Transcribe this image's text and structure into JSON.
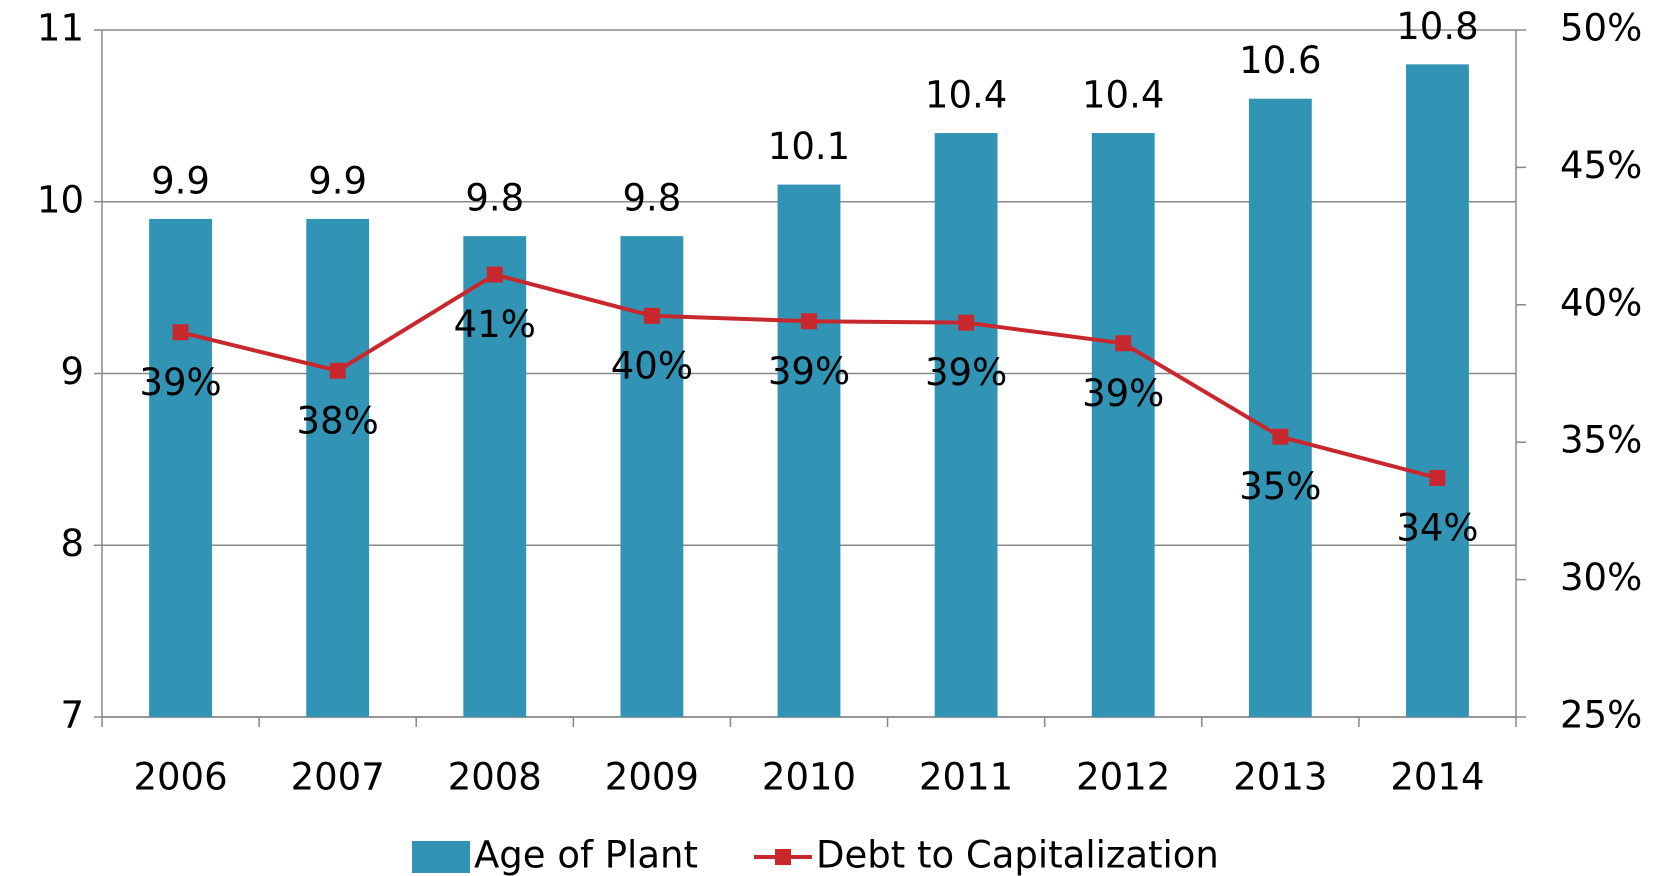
{
  "chart_data": {
    "type": "bar_line",
    "categories": [
      "2006",
      "2007",
      "2008",
      "2009",
      "2010",
      "2011",
      "2012",
      "2013",
      "2014"
    ],
    "series": [
      {
        "name": "Age of Plant",
        "color": "#3294b5",
        "type": "bar",
        "values": [
          9.9,
          9.9,
          9.8,
          9.8,
          10.1,
          10.4,
          10.4,
          10.6,
          10.8
        ]
      },
      {
        "name": "Debt to Capitalization",
        "color": "#c8282d",
        "type": "line",
        "axis": "y2",
        "values": [
          39.0,
          37.6,
          41.1,
          39.6,
          39.4,
          39.35,
          38.6,
          35.2,
          33.7
        ],
        "value_labels": [
          "39%",
          "38%",
          "41%",
          "40%",
          "39%",
          "39%",
          "39%",
          "35%",
          "34%"
        ]
      }
    ],
    "ylim": [
      7,
      11
    ],
    "yticks": [
      7,
      8,
      9,
      10,
      11
    ],
    "y2lim": [
      25,
      50
    ],
    "y2ticks": [
      {
        "value": 25,
        "label": "25%"
      },
      {
        "value": 30,
        "label": "30%"
      },
      {
        "value": 35,
        "label": "35%"
      },
      {
        "value": 40,
        "label": "40%"
      },
      {
        "value": 45,
        "label": "45%"
      },
      {
        "value": 50,
        "label": "50%"
      }
    ],
    "grid": true,
    "legend": "bottom"
  }
}
